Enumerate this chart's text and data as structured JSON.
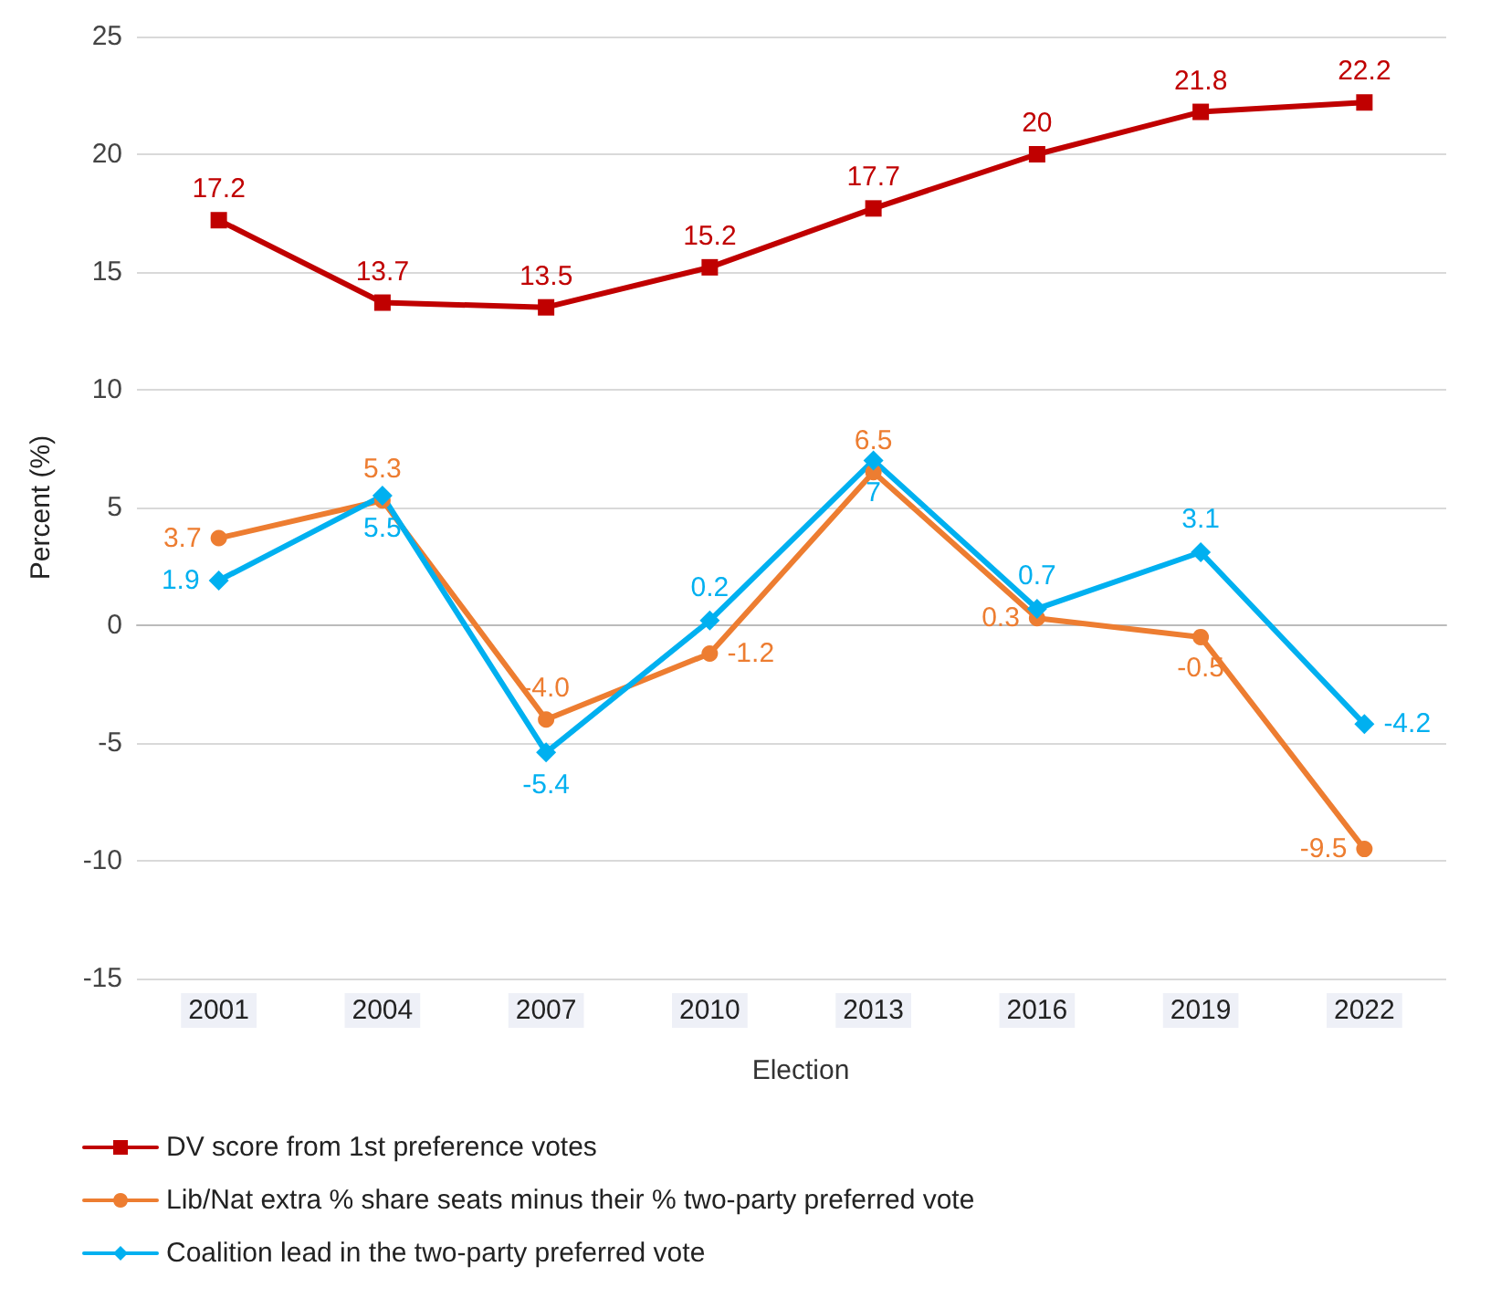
{
  "chart_data": {
    "type": "line",
    "xlabel": "Election",
    "ylabel": "Percent (%)",
    "categories": [
      "2001",
      "2004",
      "2007",
      "2010",
      "2013",
      "2016",
      "2019",
      "2022"
    ],
    "series": [
      {
        "name": "DV score from 1st preference votes",
        "color": "#c00000",
        "marker": "square",
        "values": [
          17.2,
          13.7,
          13.5,
          15.2,
          17.7,
          20,
          21.8,
          22.2
        ],
        "value_labels": [
          "17.2",
          "13.7",
          "13.5",
          "15.2",
          "17.7",
          "20",
          "21.8",
          "22.2"
        ]
      },
      {
        "name": "Lib/Nat extra % share seats minus their % two-party preferred vote",
        "color": "#ed7d31",
        "marker": "circle",
        "values": [
          3.7,
          5.3,
          -4.0,
          -1.2,
          6.5,
          0.3,
          -0.5,
          -9.5
        ],
        "value_labels": [
          "3.7",
          "5.3",
          "-4.0",
          "-1.2",
          "6.5",
          "0.3",
          "-0.5",
          "-9.5"
        ]
      },
      {
        "name": "Coalition lead in the two-party preferred vote",
        "color": "#00b0f0",
        "marker": "diamond",
        "values": [
          1.9,
          5.5,
          -5.4,
          0.2,
          7,
          0.7,
          3.1,
          -4.2
        ],
        "value_labels": [
          "1.9",
          "5.5",
          "-5.4",
          "0.2",
          "7",
          "0.7",
          "3.1",
          "-4.2"
        ]
      }
    ],
    "ylim": [
      -15,
      25
    ],
    "yticks": [
      -15,
      -10,
      -5,
      0,
      5,
      10,
      15,
      20,
      25
    ],
    "grid": "y",
    "legend": "bottom",
    "line_style": "solid"
  }
}
